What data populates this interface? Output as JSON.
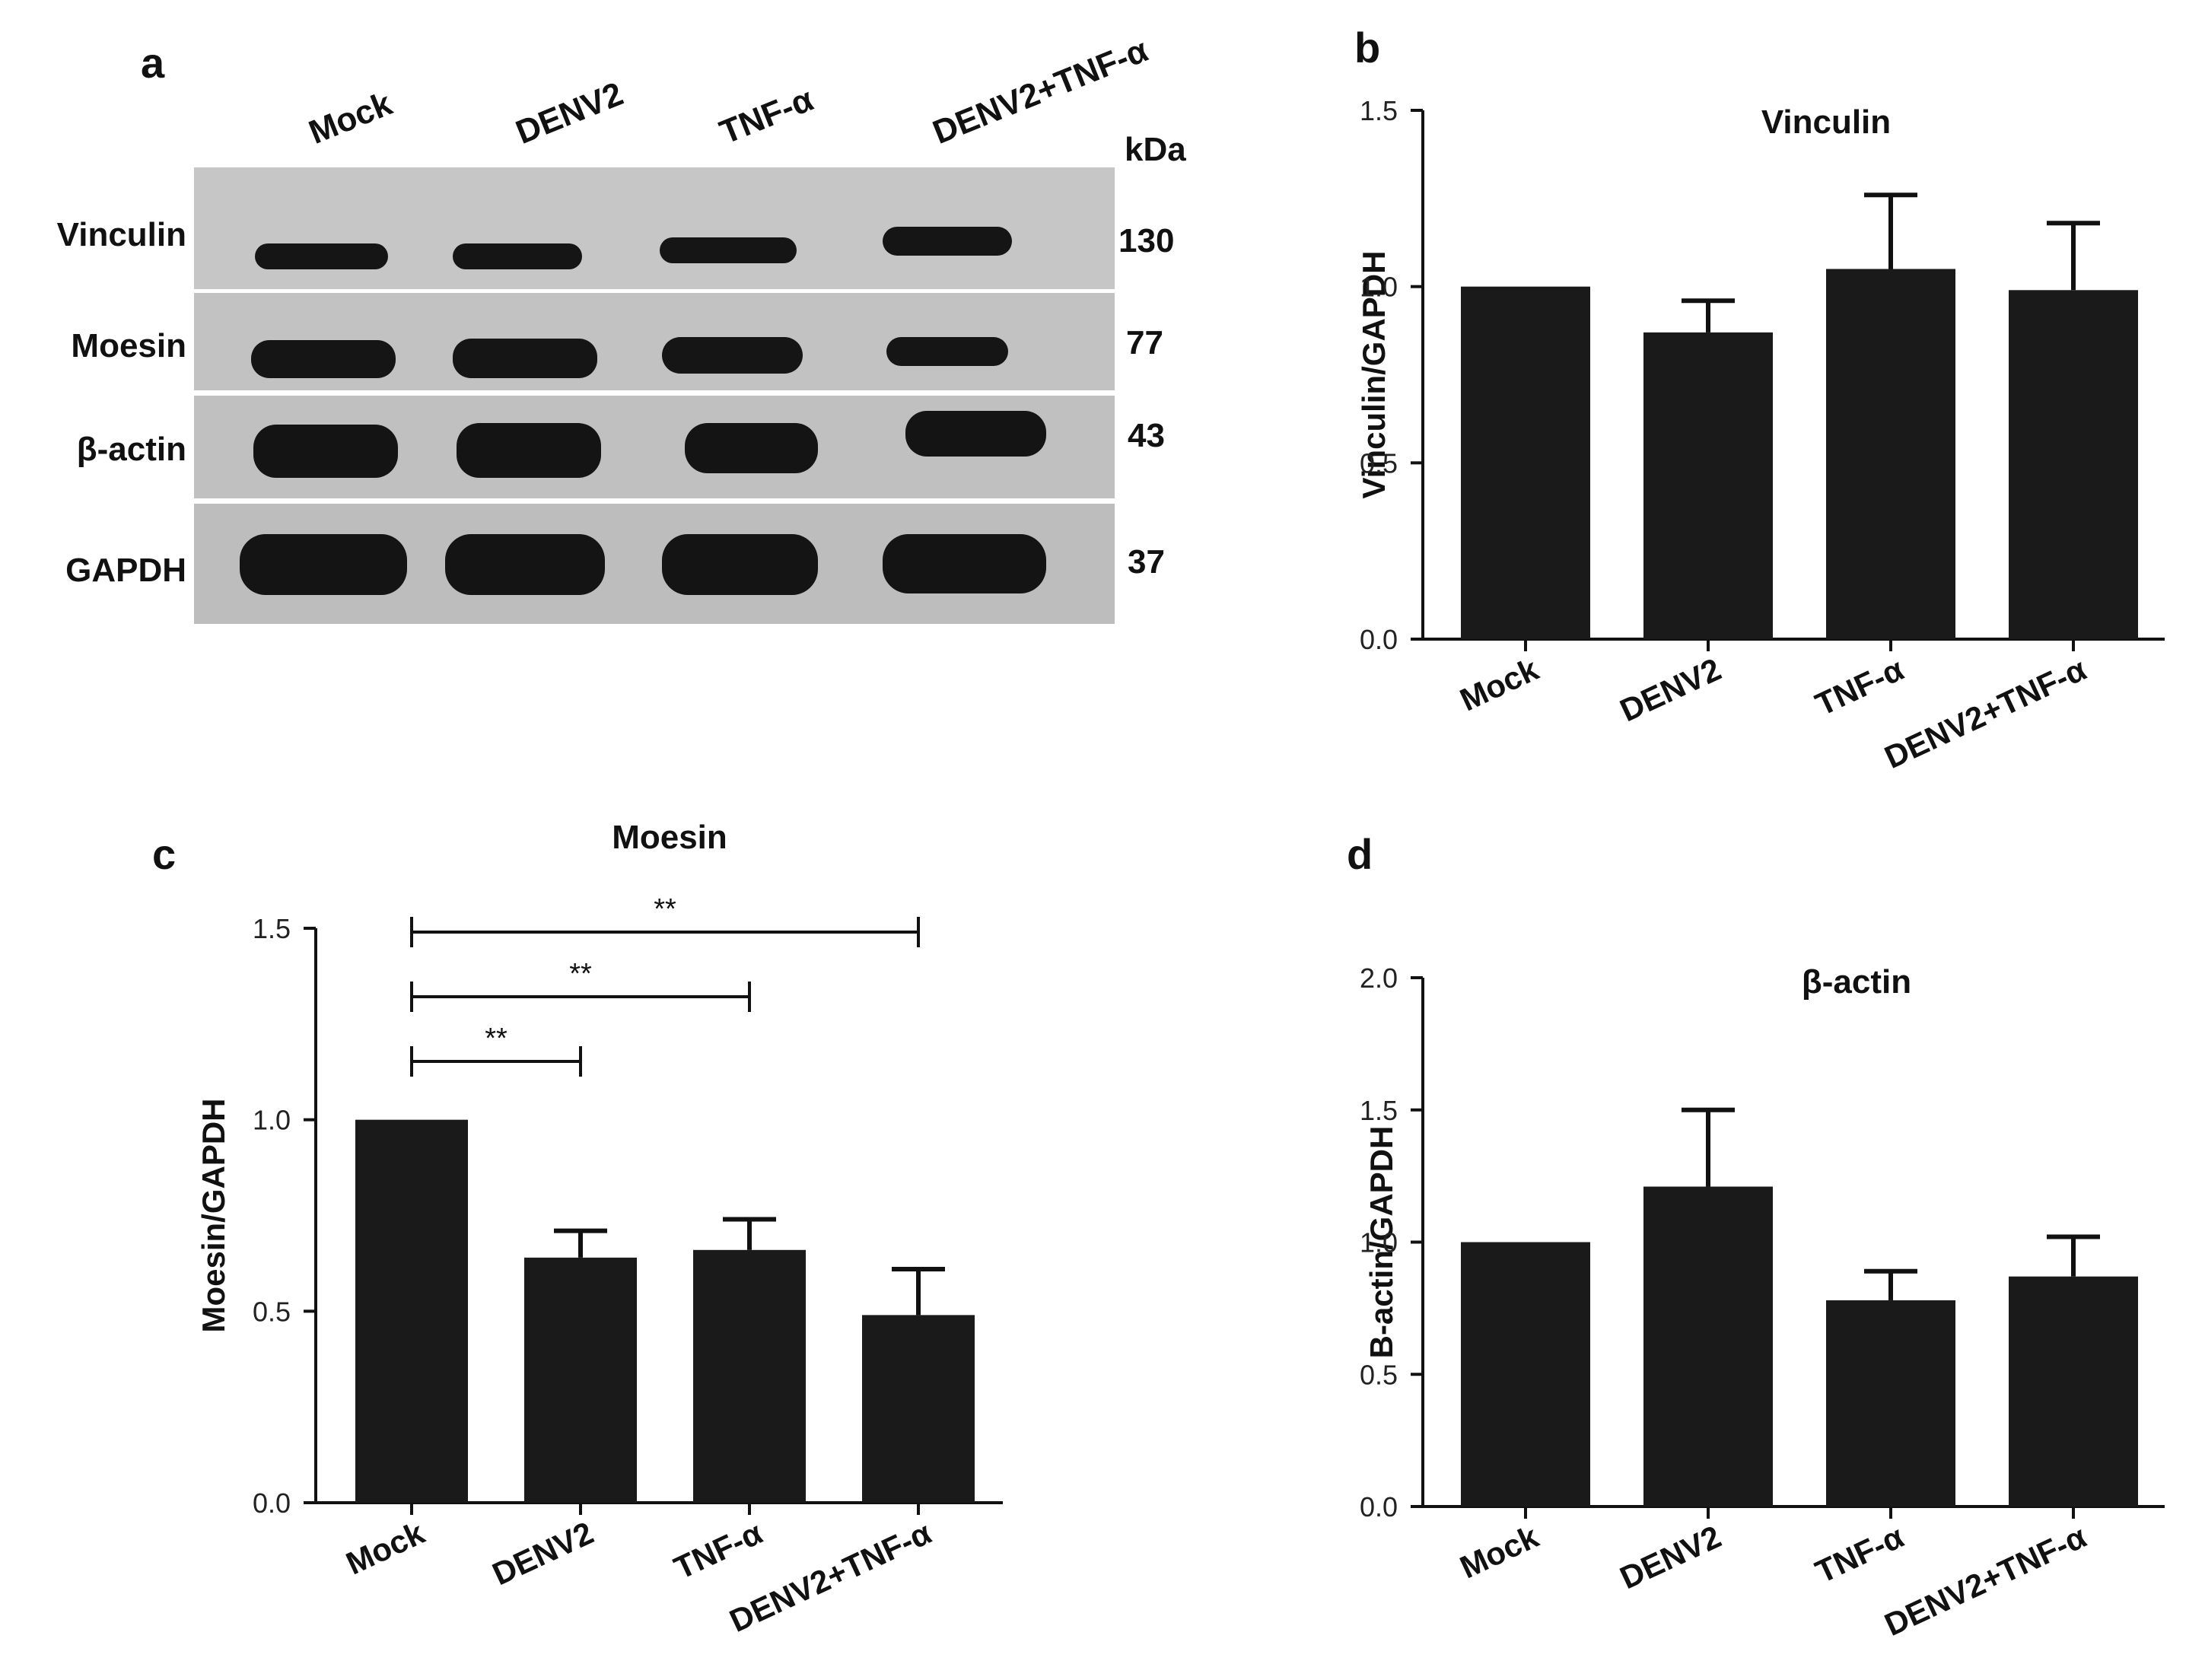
{
  "panels": {
    "a": {
      "letter": "a"
    },
    "b": {
      "letter": "b"
    },
    "c": {
      "letter": "c"
    },
    "d": {
      "letter": "d"
    }
  },
  "blot": {
    "lanes": [
      "Mock",
      "DENV2",
      "TNF-α",
      "DENV2+TNF-α"
    ],
    "kda_header": "kDa",
    "rows": [
      {
        "label": "Vinculin",
        "kda": "130"
      },
      {
        "label": "Moesin",
        "kda": "77"
      },
      {
        "label": "β-actin",
        "kda": "43"
      },
      {
        "label": "GAPDH",
        "kda": "37"
      }
    ],
    "colors": {
      "background": "#c4c4c4",
      "band": "#141414"
    }
  },
  "chart_data": [
    {
      "panel": "b",
      "type": "bar",
      "title": "Vinculin",
      "ylabel": "Vinculin/GAPDH",
      "xlabel": "",
      "categories": [
        "Mock",
        "DENV2",
        "TNF-α",
        "DENV2+TNF-α"
      ],
      "values": [
        1.0,
        0.87,
        1.05,
        0.99
      ],
      "errors": [
        0,
        0.09,
        0.21,
        0.19
      ],
      "ylim": [
        0,
        1.5
      ],
      "yticks": [
        "0.0",
        "0.5",
        "1.0",
        "1.5"
      ],
      "significance": [],
      "bar_color": "#1a1a1a",
      "grid": false
    },
    {
      "panel": "c",
      "type": "bar",
      "title": "Moesin",
      "ylabel": "Moesin/GAPDH",
      "xlabel": "",
      "categories": [
        "Mock",
        "DENV2",
        "TNF-α",
        "DENV2+TNF-α"
      ],
      "values": [
        1.0,
        0.64,
        0.66,
        0.49
      ],
      "errors": [
        0,
        0.07,
        0.08,
        0.12
      ],
      "ylim": [
        0,
        1.5
      ],
      "yticks": [
        "0.0",
        "0.5",
        "1.0",
        "1.5"
      ],
      "significance": [
        {
          "from": 0,
          "to": 1,
          "label": "**"
        },
        {
          "from": 0,
          "to": 2,
          "label": "**"
        },
        {
          "from": 0,
          "to": 3,
          "label": "**"
        }
      ],
      "bar_color": "#1a1a1a",
      "grid": false
    },
    {
      "panel": "d",
      "type": "bar",
      "title": "β-actin",
      "ylabel": "B-actin/GAPDH",
      "xlabel": "",
      "categories": [
        "Mock",
        "DENV2",
        "TNF-α",
        "DENV2+TNF-α"
      ],
      "values": [
        1.0,
        1.21,
        0.78,
        0.87
      ],
      "errors": [
        0,
        0.29,
        0.11,
        0.15
      ],
      "ylim": [
        0,
        2.0
      ],
      "yticks": [
        "0.0",
        "0.5",
        "1.0",
        "1.5",
        "2.0"
      ],
      "significance": [],
      "bar_color": "#1a1a1a",
      "grid": false
    }
  ]
}
